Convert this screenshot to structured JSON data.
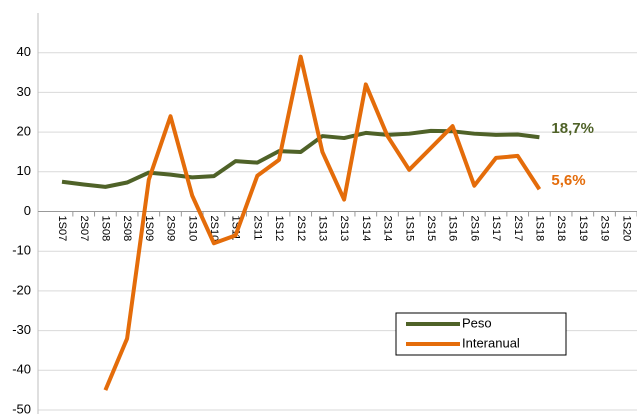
{
  "chart_data": {
    "type": "line",
    "categories": [
      "1S07",
      "2S07",
      "1S08",
      "2S08",
      "1S09",
      "2S09",
      "1S10",
      "2S10",
      "1S11",
      "2S11",
      "1S12",
      "2S12",
      "1S13",
      "2S13",
      "1S14",
      "2S14",
      "1S15",
      "2S15",
      "1S16",
      "2S16",
      "1S17",
      "2S17",
      "1S18",
      "2S18",
      "1S19",
      "2S19",
      "1S20"
    ],
    "series": [
      {
        "name": "Peso",
        "color": "#4f6228",
        "values": [
          7.5,
          6.8,
          6.2,
          7.3,
          9.8,
          9.3,
          8.6,
          8.9,
          12.7,
          12.3,
          15.2,
          15.0,
          19.0,
          18.5,
          19.8,
          19.3,
          19.6,
          20.3,
          20.2,
          19.6,
          19.3,
          19.4,
          18.7,
          null,
          null,
          null,
          null
        ],
        "value_labels": [
          null,
          null,
          null,
          null,
          null,
          null,
          null,
          null,
          null,
          null,
          null,
          null,
          null,
          null,
          null,
          null,
          null,
          null,
          null,
          null,
          null,
          null,
          "18,7%",
          null,
          null,
          null,
          null
        ]
      },
      {
        "name": "Interanual",
        "color": "#e46c0a",
        "values": [
          null,
          null,
          -45,
          -32,
          8,
          24,
          4,
          -8,
          -6,
          9,
          13,
          39,
          15,
          3,
          32,
          19,
          10.5,
          16,
          21.5,
          6.5,
          13.5,
          14,
          5.6,
          null,
          null,
          null,
          null
        ],
        "value_labels": [
          null,
          null,
          null,
          null,
          null,
          null,
          null,
          null,
          null,
          null,
          null,
          null,
          null,
          null,
          null,
          null,
          null,
          null,
          null,
          null,
          null,
          null,
          "5,6%",
          null,
          null,
          null,
          null
        ]
      }
    ],
    "ylim": [
      -50,
      50
    ],
    "yticks": [
      -50,
      -40,
      -30,
      -20,
      -10,
      0,
      10,
      20,
      30,
      40
    ],
    "grid": true,
    "legend": "lower right"
  }
}
